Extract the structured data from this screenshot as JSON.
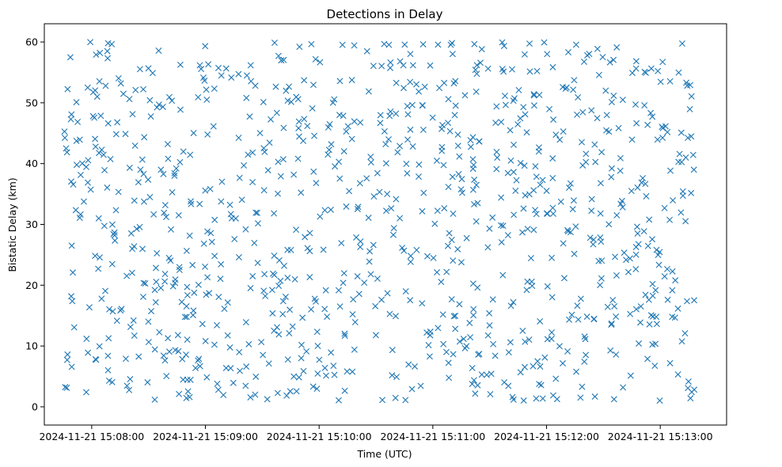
{
  "chart_data": {
    "type": "scatter",
    "title": "Detections in Delay",
    "xlabel": "Time (UTC)",
    "ylabel": "Bistatic Delay (km)",
    "marker": "x",
    "color": "#1f77b4",
    "grid": false,
    "xlim": [
      -25,
      335
    ],
    "ylim": [
      -3,
      63
    ],
    "x_tick_labels": [
      "2024-11-21 15:08:00",
      "2024-11-21 15:09:00",
      "2024-11-21 15:10:00",
      "2024-11-21 15:11:00",
      "2024-11-21 15:12:00",
      "2024-11-21 15:13:00"
    ],
    "y_tick_labels": [
      "0",
      "10",
      "20",
      "30",
      "40",
      "50",
      "60"
    ],
    "y_ticks": [
      0,
      10,
      20,
      30,
      40,
      50,
      60
    ],
    "seed": 20241121,
    "n_points": 1000,
    "x_range_seconds": [
      -15,
      318
    ],
    "y_range": [
      1,
      60
    ]
  }
}
